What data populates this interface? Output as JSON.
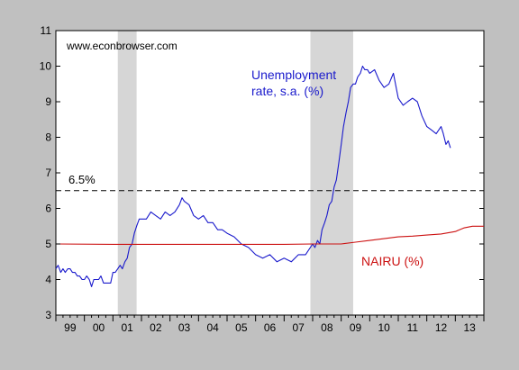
{
  "chart_data": {
    "type": "line",
    "watermark": "www.econbrowser.com",
    "x_tick_labels": [
      "99",
      "00",
      "01",
      "02",
      "03",
      "04",
      "05",
      "06",
      "07",
      "08",
      "09",
      "10",
      "11",
      "12",
      "13"
    ],
    "x_tick_years": [
      1999,
      2000,
      2001,
      2002,
      2003,
      2004,
      2005,
      2006,
      2007,
      2008,
      2009,
      2010,
      2011,
      2012,
      2013
    ],
    "xlim": [
      1999.0,
      2014.0
    ],
    "ylim": [
      3,
      11
    ],
    "y_ticks": [
      3,
      4,
      5,
      6,
      7,
      8,
      9,
      10,
      11
    ],
    "grid": false,
    "recessions": [
      [
        2001.17,
        2001.83
      ],
      [
        2007.92,
        2009.42
      ]
    ],
    "reference_line": {
      "value": 6.5,
      "label": "6.5%",
      "color": "#000000"
    },
    "series": [
      {
        "name": "Unemployment rate, s.a. (%)",
        "label_lines": [
          "Unemployment",
          "rate, s.a. (%)"
        ],
        "color": "#1a1acc",
        "x": [
          1999.0,
          1999.08,
          1999.17,
          1999.25,
          1999.33,
          1999.42,
          1999.5,
          1999.58,
          1999.67,
          1999.75,
          1999.83,
          1999.92,
          2000.0,
          2000.08,
          2000.17,
          2000.25,
          2000.33,
          2000.42,
          2000.5,
          2000.58,
          2000.67,
          2000.75,
          2000.83,
          2000.92,
          2001.0,
          2001.08,
          2001.17,
          2001.25,
          2001.33,
          2001.42,
          2001.5,
          2001.58,
          2001.67,
          2001.75,
          2001.83,
          2001.92,
          2002.0,
          2002.17,
          2002.33,
          2002.5,
          2002.67,
          2002.83,
          2003.0,
          2003.17,
          2003.33,
          2003.42,
          2003.5,
          2003.67,
          2003.83,
          2004.0,
          2004.17,
          2004.33,
          2004.5,
          2004.67,
          2004.83,
          2005.0,
          2005.25,
          2005.5,
          2005.75,
          2006.0,
          2006.25,
          2006.5,
          2006.75,
          2007.0,
          2007.25,
          2007.5,
          2007.75,
          2008.0,
          2008.08,
          2008.17,
          2008.25,
          2008.33,
          2008.42,
          2008.5,
          2008.58,
          2008.67,
          2008.75,
          2008.83,
          2008.92,
          2009.0,
          2009.08,
          2009.17,
          2009.25,
          2009.33,
          2009.42,
          2009.5,
          2009.58,
          2009.67,
          2009.75,
          2009.83,
          2009.92,
          2010.0,
          2010.17,
          2010.33,
          2010.5,
          2010.67,
          2010.83,
          2011.0,
          2011.17,
          2011.33,
          2011.5,
          2011.67,
          2011.83,
          2012.0,
          2012.17,
          2012.33,
          2012.5,
          2012.58,
          2012.67,
          2012.75,
          2012.83
        ],
        "values": [
          4.3,
          4.4,
          4.2,
          4.3,
          4.2,
          4.3,
          4.3,
          4.2,
          4.2,
          4.1,
          4.1,
          4.0,
          4.0,
          4.1,
          4.0,
          3.8,
          4.0,
          4.0,
          4.0,
          4.1,
          3.9,
          3.9,
          3.9,
          3.9,
          4.2,
          4.2,
          4.3,
          4.4,
          4.3,
          4.5,
          4.6,
          4.9,
          5.0,
          5.3,
          5.5,
          5.7,
          5.7,
          5.7,
          5.9,
          5.8,
          5.7,
          5.9,
          5.8,
          5.9,
          6.1,
          6.3,
          6.2,
          6.1,
          5.8,
          5.7,
          5.8,
          5.6,
          5.6,
          5.4,
          5.4,
          5.3,
          5.2,
          5.0,
          4.9,
          4.7,
          4.6,
          4.7,
          4.5,
          4.6,
          4.5,
          4.7,
          4.7,
          5.0,
          4.9,
          5.1,
          5.0,
          5.4,
          5.6,
          5.8,
          6.1,
          6.2,
          6.6,
          6.8,
          7.3,
          7.8,
          8.3,
          8.7,
          9.0,
          9.4,
          9.5,
          9.5,
          9.7,
          9.8,
          10.0,
          9.9,
          9.9,
          9.8,
          9.9,
          9.6,
          9.4,
          9.5,
          9.8,
          9.1,
          8.9,
          9.0,
          9.1,
          9.0,
          8.6,
          8.3,
          8.2,
          8.1,
          8.3,
          8.1,
          7.8,
          7.9,
          7.7
        ]
      },
      {
        "name": "NAIRU (%)",
        "label_lines": [
          "NAIRU (%)"
        ],
        "color": "#cc1111",
        "x": [
          1999.0,
          2001.0,
          2003.0,
          2005.0,
          2007.0,
          2008.0,
          2009.0,
          2009.5,
          2010.0,
          2010.5,
          2011.0,
          2011.5,
          2012.0,
          2012.5,
          2013.0,
          2013.3,
          2013.6,
          2014.0
        ],
        "values": [
          5.0,
          4.99,
          4.99,
          4.99,
          4.99,
          5.0,
          5.0,
          5.05,
          5.1,
          5.15,
          5.2,
          5.22,
          5.25,
          5.28,
          5.35,
          5.45,
          5.5,
          5.5
        ]
      }
    ]
  }
}
